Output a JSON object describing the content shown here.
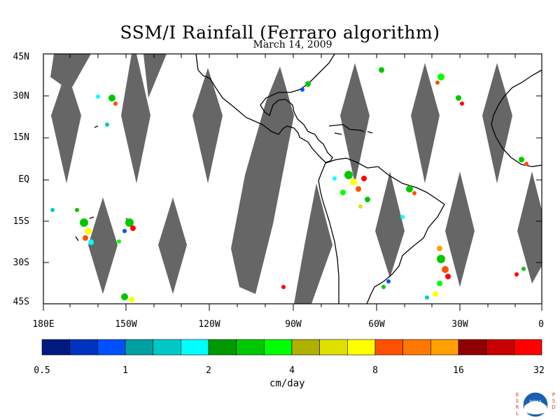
{
  "title": "SSM/I Rainfall (Ferraro algorithm)",
  "date": "March 14, 2009",
  "lat_labels": [
    "45N",
    "30N",
    "15N",
    "EQ",
    "15S",
    "30S",
    "45S"
  ],
  "lon_labels": [
    "180E",
    "150W",
    "120W",
    "90W",
    "60W",
    "30W",
    "0"
  ],
  "colorbar": {
    "unit": "cm/day",
    "tick_labels": [
      "0.5",
      "1",
      "2",
      "4",
      "8",
      "16",
      "32"
    ],
    "colors": [
      "#001a80",
      "#0033c0",
      "#0050ff",
      "#00a0a0",
      "#00c8c8",
      "#00ffff",
      "#009a00",
      "#00c800",
      "#00ff00",
      "#b0b000",
      "#e0e000",
      "#ffff00",
      "#ff5000",
      "#ff7800",
      "#ffa000",
      "#900000",
      "#c80000",
      "#ff0000"
    ]
  },
  "swath_color": "#666666",
  "logo": {
    "left_letters": "ESRL",
    "right_letters": "PSD",
    "emblem_text": "NOAA"
  }
}
